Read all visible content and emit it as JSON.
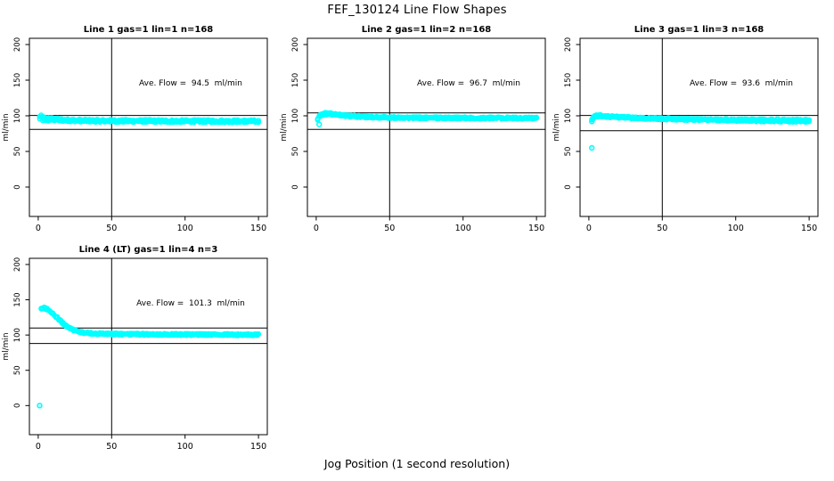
{
  "figure": {
    "title": "FEF_130124  Line Flow Shapes",
    "xlabel": "Jog Position (1 second resolution)",
    "background": "#FFFFFF",
    "point_color": "#00FFFF",
    "axis_color": "#000000"
  },
  "chart_data": [
    {
      "id": "line-1",
      "type": "scatter",
      "title": "Line 1 gas=1 lin=1 n=168",
      "ylabel": "ml/min",
      "annotation": "Ave. Flow =  94.5  ml/min",
      "ave_flow": 94.5,
      "n": 168,
      "xlim": [
        -6,
        156
      ],
      "ylim": [
        -41.25,
        208.75
      ],
      "xticks": [
        0,
        50,
        100,
        150
      ],
      "yticks": [
        0,
        50,
        100,
        150,
        200
      ],
      "vline_x": 50,
      "ref_lines": [
        100.5,
        81
      ],
      "grid": false,
      "series": {
        "x": [
          1,
          3,
          6,
          10,
          15,
          20,
          30,
          50,
          100,
          150
        ],
        "y": [
          97.5,
          96,
          95.2,
          95,
          94.3,
          93.8,
          93.2,
          92.8,
          92.5,
          92.3
        ],
        "halfwidth": [
          4.5,
          4.2,
          3.2,
          2.6,
          2.2,
          2.0,
          2.0,
          2.0,
          2.0,
          2.0
        ],
        "x_step": 1
      },
      "outliers": []
    },
    {
      "id": "line-2",
      "type": "scatter",
      "title": "Line 2 gas=1 lin=2 n=168",
      "ylabel": "ml/min",
      "annotation": "Ave. Flow =  96.7  ml/min",
      "ave_flow": 96.7,
      "n": 168,
      "xlim": [
        -6,
        156
      ],
      "ylim": [
        -41.25,
        208.75
      ],
      "xticks": [
        0,
        50,
        100,
        150
      ],
      "yticks": [
        0,
        50,
        100,
        150,
        200
      ],
      "vline_x": 50,
      "ref_lines": [
        104,
        81
      ],
      "grid": false,
      "series": {
        "x": [
          1,
          2,
          3,
          5,
          8,
          12,
          16,
          20,
          30,
          40,
          60,
          100,
          150
        ],
        "y": [
          96,
          98,
          100.5,
          102.5,
          103,
          102,
          101,
          100.2,
          98.8,
          98,
          97.3,
          97,
          96.8
        ],
        "halfwidth": [
          2,
          2,
          2,
          2,
          1.8,
          1.7,
          1.6,
          1.5,
          1.5,
          1.4,
          1.4,
          1.4,
          1.4
        ],
        "x_step": 1
      },
      "outliers": [
        [
          2,
          88
        ]
      ]
    },
    {
      "id": "line-3",
      "type": "scatter",
      "title": "Line 3 gas=1 lin=3 n=168",
      "ylabel": "ml/min",
      "annotation": "Ave. Flow =  93.6  ml/min",
      "ave_flow": 93.6,
      "n": 168,
      "xlim": [
        -6,
        156
      ],
      "ylim": [
        -41.25,
        208.75
      ],
      "xticks": [
        0,
        50,
        100,
        150
      ],
      "yticks": [
        0,
        50,
        100,
        150,
        200
      ],
      "vline_x": 50,
      "ref_lines": [
        100.5,
        79
      ],
      "grid": false,
      "series": {
        "x": [
          2,
          4,
          6,
          10,
          15,
          20,
          30,
          40,
          60,
          80,
          100,
          120,
          150
        ],
        "y": [
          95,
          99,
          100,
          99.5,
          98.8,
          98.2,
          97.2,
          96.4,
          95.3,
          94.5,
          94,
          93.5,
          93
        ],
        "halfwidth": [
          2.5,
          2,
          1.8,
          1.6,
          1.5,
          1.5,
          1.5,
          1.5,
          1.5,
          1.6,
          1.8,
          2,
          2.2
        ],
        "x_step": 1
      },
      "outliers": [
        [
          2,
          55
        ],
        [
          2,
          92
        ]
      ]
    },
    {
      "id": "line-4",
      "type": "scatter",
      "title": "Line 4 (LT) gas=1 lin=4 n=3",
      "ylabel": "ml/min",
      "annotation": "Ave. Flow =  101.3  ml/min",
      "ave_flow": 101.3,
      "n": 3,
      "xlim": [
        -6,
        156
      ],
      "ylim": [
        -41.25,
        208.75
      ],
      "xticks": [
        0,
        50,
        100,
        150
      ],
      "yticks": [
        0,
        50,
        100,
        150,
        200
      ],
      "vline_x": 50,
      "ref_lines": [
        110,
        88
      ],
      "grid": false,
      "series": {
        "x": [
          2,
          4,
          6,
          8,
          10,
          12,
          15,
          18,
          21,
          25,
          30,
          35,
          40,
          50,
          70,
          100,
          150
        ],
        "y": [
          137,
          138,
          137,
          134.5,
          130.5,
          126.5,
          120.5,
          114.5,
          110,
          106.5,
          103.5,
          102.5,
          102,
          101.5,
          101,
          100.8,
          100.5
        ],
        "halfwidth": [
          1.6,
          1.6,
          1.6,
          1.5,
          1.5,
          1.5,
          1.4,
          1.4,
          1.4,
          1.4,
          1.4,
          1.4,
          1.4,
          1.4,
          1.4,
          1.4,
          1.4
        ],
        "x_step": 1
      },
      "outliers": [
        [
          1,
          0
        ]
      ]
    }
  ]
}
